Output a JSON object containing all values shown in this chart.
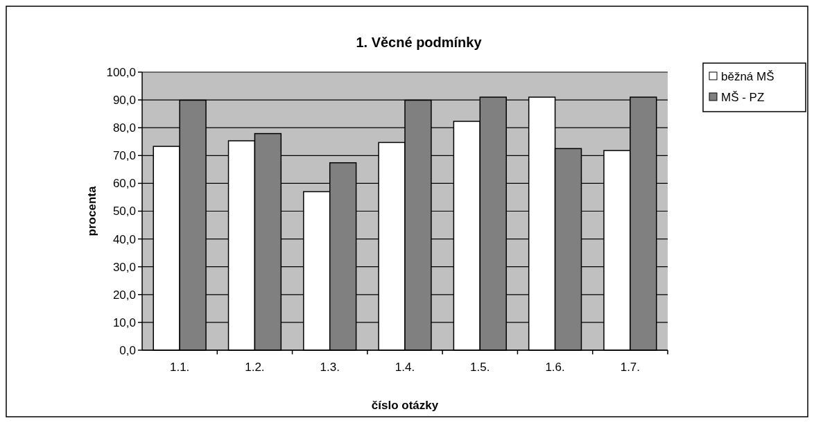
{
  "chart_data": {
    "type": "bar",
    "title": "1. Věcné podmínky",
    "xlabel": "číslo otázky",
    "ylabel": "procenta",
    "categories": [
      "1.1.",
      "1.2.",
      "1.3.",
      "1.4.",
      "1.5.",
      "1.6.",
      "1.7."
    ],
    "series": [
      {
        "name": "běžná MŠ",
        "color": "#ffffff",
        "values": [
          73.3,
          75.3,
          57.0,
          74.7,
          82.3,
          91.0,
          71.8
        ]
      },
      {
        "name": "MŠ - PZ",
        "color": "#808080",
        "values": [
          89.9,
          77.9,
          67.4,
          89.9,
          91.0,
          72.5,
          91.0
        ]
      }
    ],
    "ylim": [
      0,
      100
    ],
    "yticks": [
      {
        "value": 0,
        "label": "0,0"
      },
      {
        "value": 10,
        "label": "10,0"
      },
      {
        "value": 20,
        "label": "20,0"
      },
      {
        "value": 30,
        "label": "30,0"
      },
      {
        "value": 40,
        "label": "40,0"
      },
      {
        "value": 50,
        "label": "50,0"
      },
      {
        "value": 60,
        "label": "60,0"
      },
      {
        "value": 70,
        "label": "70,0"
      },
      {
        "value": 80,
        "label": "80,0"
      },
      {
        "value": 90,
        "label": "90,0"
      },
      {
        "value": 100,
        "label": "100,0"
      }
    ],
    "grid": "y",
    "legend": "right"
  }
}
